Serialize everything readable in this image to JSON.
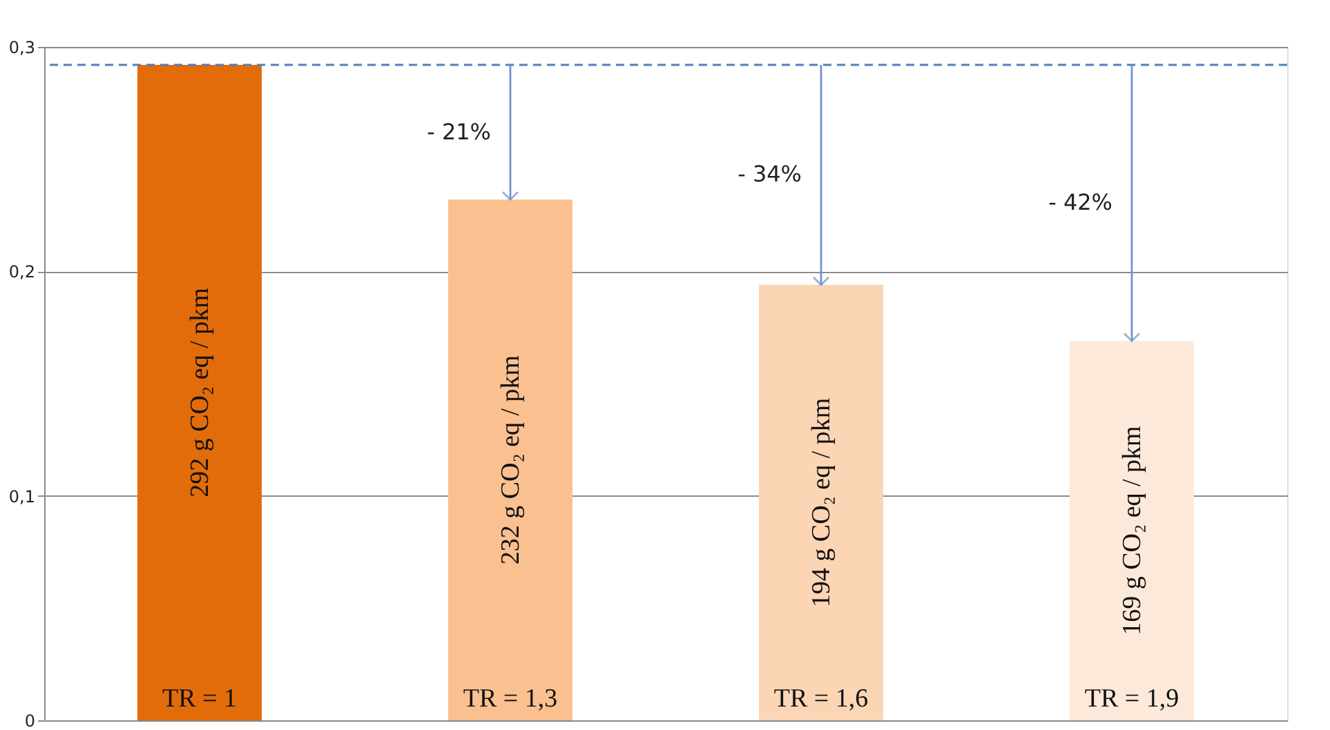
{
  "chart_data": {
    "type": "bar",
    "categories": [
      "TR = 1",
      "TR = 1,3",
      "TR = 1,6",
      "TR = 1,9"
    ],
    "values": [
      0.292,
      0.232,
      0.194,
      0.169
    ],
    "colors": [
      "#e36c0a",
      "#fac090",
      "#fcd5b5",
      "#fde9d9"
    ],
    "ylim": [
      0,
      0.3
    ],
    "yticks": [
      0,
      {
        "value": 0.1,
        "label": "0,1"
      },
      {
        "value": 0.2,
        "label": "0,2"
      },
      {
        "value": 0.3,
        "label": "0,3"
      }
    ],
    "grid": "y",
    "ref_lines": [
      {
        "axis": "y",
        "value": 0.292,
        "color": "#4f81bd",
        "line_style": "dashed"
      }
    ],
    "annotations": [
      "292 g CO₂ eq / pkm",
      "232 g CO₂ eq / pkm",
      "194 g CO₂ eq / pkm",
      "169 g CO₂ eq / pkm",
      "- 21%",
      "- 34%",
      "- 42%"
    ]
  }
}
